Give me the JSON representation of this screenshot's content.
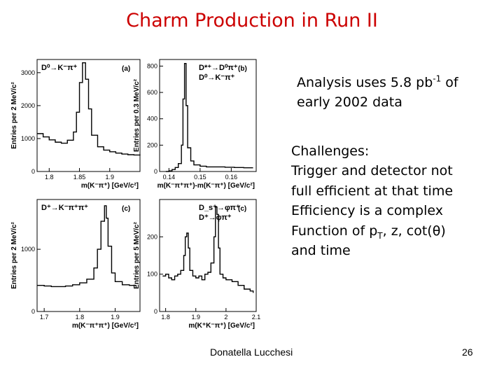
{
  "slide": {
    "title": "Charm Production in Run II",
    "analysis": {
      "line1_pre": "Analysis uses 5.8 pb",
      "line1_sup": "-1",
      "line1_post": " of",
      "line2": "early 2002 data"
    },
    "challenges": {
      "heading": "Challenges:",
      "line1": "Trigger and detector not",
      "line2": "full efficient at that time",
      "line3": "Efficiency is a complex",
      "line4_pre": "Function of p",
      "line4_sub": "T",
      "line4_post": ", z, cot(θ)",
      "line5": "and time"
    },
    "footer": {
      "author": "Donatella Lucchesi",
      "page": "26"
    },
    "colors": {
      "title": "#cc0000",
      "text": "#000000"
    }
  },
  "chart_data": [
    {
      "type": "line",
      "panel": "(a)",
      "label": "D⁰→K⁻π⁺",
      "ylabel": "Entries per 2 MeV/c²",
      "xlabel": "m(K⁻π⁺) [GeV/c²]",
      "xlim": [
        1.78,
        1.95
      ],
      "ylim": [
        0,
        3400
      ],
      "xticks": [
        1.8,
        1.85,
        1.9
      ],
      "xtick_labels": [
        "1.8",
        "1.85",
        "1.9"
      ],
      "yticks": [
        0,
        1000,
        2000,
        3000
      ],
      "ytick_labels": [
        "0",
        "1000",
        "2000",
        "3000"
      ],
      "x": [
        1.78,
        1.79,
        1.8,
        1.81,
        1.82,
        1.83,
        1.84,
        1.845,
        1.85,
        1.855,
        1.86,
        1.865,
        1.87,
        1.88,
        1.89,
        1.9,
        1.91,
        1.92,
        1.93,
        1.94,
        1.95
      ],
      "y": [
        1150,
        1050,
        960,
        890,
        860,
        950,
        1200,
        1800,
        2700,
        3300,
        2800,
        1900,
        1100,
        750,
        650,
        600,
        560,
        530,
        510,
        500,
        490
      ]
    },
    {
      "type": "line",
      "panel": "(b)",
      "label": "D*⁺→D⁰π⁺, D⁰→K⁻π⁺",
      "ylabel": "Entries per 0.3 MeV/c²",
      "xlabel": "m(K⁻π⁺π⁺)-m(K⁻π⁺) [GeV/c²]",
      "xlim": [
        0.137,
        0.168
      ],
      "ylim": [
        0,
        850
      ],
      "xticks": [
        0.14,
        0.15,
        0.16
      ],
      "xtick_labels": [
        "0.14",
        "0.15",
        "0.16"
      ],
      "yticks": [
        0,
        200,
        400,
        600,
        800
      ],
      "ytick_labels": [
        "0",
        "200",
        "400",
        "600",
        "800"
      ],
      "x": [
        0.139,
        0.14,
        0.141,
        0.142,
        0.143,
        0.144,
        0.1445,
        0.145,
        0.1455,
        0.146,
        0.147,
        0.148,
        0.15,
        0.152,
        0.155,
        0.158,
        0.161,
        0.164,
        0.167
      ],
      "y": [
        0,
        5,
        15,
        30,
        60,
        200,
        550,
        820,
        500,
        180,
        80,
        50,
        40,
        35,
        35,
        32,
        30,
        28,
        28
      ]
    },
    {
      "type": "line",
      "panel": "(c)",
      "label": "D⁺→K⁻π⁺π⁺",
      "ylabel": "Entries per 2 MeV/c²",
      "xlabel": "m(K⁻π⁺π⁺) [GeV/c²]",
      "xlim": [
        1.68,
        1.97
      ],
      "ylim": [
        0,
        1800
      ],
      "xticks": [
        1.7,
        1.8,
        1.9
      ],
      "xtick_labels": [
        "1.7",
        "1.8",
        "1.9"
      ],
      "yticks": [
        0,
        1000
      ],
      "ytick_labels": [
        "0",
        "1000"
      ],
      "x": [
        1.68,
        1.7,
        1.72,
        1.74,
        1.76,
        1.78,
        1.8,
        1.82,
        1.84,
        1.85,
        1.86,
        1.87,
        1.875,
        1.88,
        1.89,
        1.9,
        1.92,
        1.94,
        1.96
      ],
      "y": [
        420,
        410,
        400,
        400,
        410,
        430,
        460,
        520,
        700,
        1000,
        1450,
        1700,
        1500,
        1050,
        620,
        480,
        430,
        420,
        420
      ]
    },
    {
      "type": "line",
      "panel": "(c)",
      "label": "D_s⁺→φπ⁺, D⁺→φπ⁺",
      "ylabel": "Entries per 5 MeV/c²",
      "xlabel": "m(K⁺K⁻π⁺) [GeV/c²]",
      "xlim": [
        1.78,
        2.1
      ],
      "ylim": [
        0,
        300
      ],
      "xticks": [
        1.8,
        1.9,
        2,
        2.1
      ],
      "xtick_labels": [
        "1.8",
        "1.9",
        "2",
        "2.1"
      ],
      "yticks": [
        0,
        100,
        200
      ],
      "ytick_labels": [
        "0",
        "100",
        "200"
      ],
      "x": [
        1.79,
        1.8,
        1.81,
        1.82,
        1.83,
        1.84,
        1.85,
        1.86,
        1.865,
        1.87,
        1.875,
        1.88,
        1.89,
        1.9,
        1.91,
        1.92,
        1.93,
        1.94,
        1.95,
        1.96,
        1.965,
        1.97,
        1.975,
        1.98,
        1.99,
        2.0,
        2.02,
        2.04,
        2.06,
        2.08,
        2.09
      ],
      "y": [
        95,
        100,
        90,
        85,
        95,
        100,
        110,
        150,
        200,
        210,
        170,
        110,
        95,
        90,
        95,
        85,
        100,
        105,
        130,
        200,
        280,
        260,
        170,
        100,
        90,
        85,
        80,
        70,
        60,
        55,
        50
      ]
    }
  ]
}
